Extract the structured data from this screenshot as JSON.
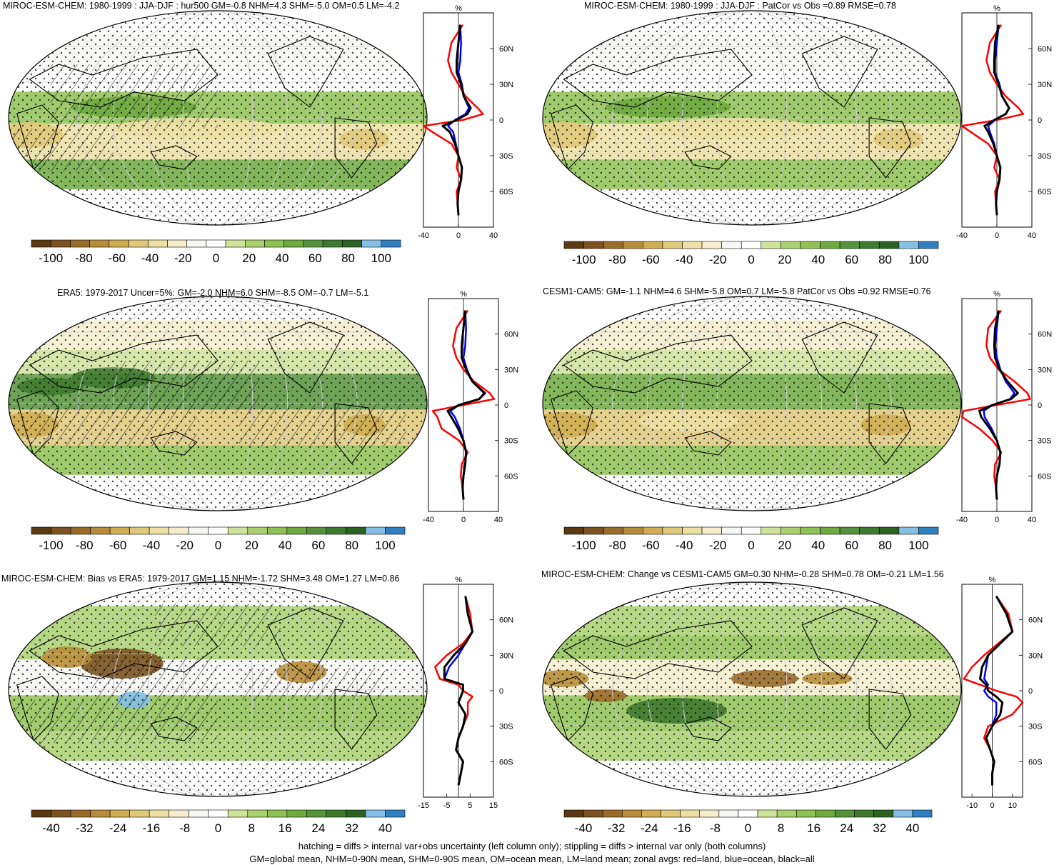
{
  "colors": {
    "scale": [
      "#5a3a12",
      "#7a5321",
      "#9a6c2a",
      "#b88d3a",
      "#cfae52",
      "#e0c97a",
      "#ede0a4",
      "#f5eecc",
      "#f7f7f5",
      "#ffffff",
      "#cfe39a",
      "#a9d170",
      "#8fc254",
      "#6faa3f",
      "#55923a",
      "#3f7a2f",
      "#2c6224",
      "#85bfe6",
      "#2f7fc1"
    ],
    "land": "#ff0000",
    "ocean": "#0000ff",
    "all": "#000000"
  },
  "chart_data": [
    {
      "type": "heatmap",
      "title": "MIROC-ESM-CHEM: 1980-1999 : JJA-DJF : hur500 GM=-0.8 NHM=4.3 SHM=-5.0 OM=0.5 LM=-4.2",
      "colorbar_ticks": [
        "-100",
        "-80",
        "-60",
        "-40",
        "-20",
        "0",
        "20",
        "40",
        "60",
        "80",
        "100"
      ],
      "zonal": {
        "unit": "%",
        "xticks": [
          "-40",
          "0",
          "40"
        ],
        "xlim": [
          -40,
          40
        ],
        "yticks": [
          "60N",
          "30N",
          "0",
          "30S",
          "60S"
        ],
        "lat": [
          80,
          65,
          50,
          40,
          30,
          20,
          10,
          5,
          0,
          -5,
          -10,
          -20,
          -30,
          -40,
          -50,
          -60,
          -70,
          -80
        ],
        "land": [
          5,
          -8,
          -12,
          -8,
          0,
          8,
          22,
          28,
          5,
          -42,
          -30,
          -8,
          0,
          -2,
          3,
          -2,
          -1,
          0
        ],
        "ocean": [
          2,
          3,
          2,
          0,
          4,
          6,
          12,
          8,
          -4,
          -12,
          -6,
          -3,
          0,
          4,
          3,
          0,
          -1,
          0
        ],
        "all": [
          2,
          0,
          -2,
          -2,
          3,
          6,
          14,
          10,
          -2,
          -18,
          -10,
          -4,
          0,
          4,
          3,
          0,
          -1,
          0
        ]
      }
    },
    {
      "type": "heatmap",
      "title": "MIROC-ESM-CHEM: 1980-1999 : JJA-DJF : PatCor vs Obs =0.89 RMSE=0.78",
      "colorbar_ticks": [
        "-100",
        "-80",
        "-60",
        "-40",
        "-20",
        "0",
        "20",
        "40",
        "60",
        "80",
        "100"
      ],
      "zonal": {
        "unit": "%",
        "xticks": [
          "-40",
          "0",
          "40"
        ],
        "xlim": [
          -40,
          40
        ],
        "yticks": [
          "60N",
          "30N",
          "0",
          "30S",
          "60S"
        ],
        "lat": [
          80,
          65,
          50,
          40,
          30,
          20,
          10,
          5,
          0,
          -5,
          -10,
          -20,
          -30,
          -40,
          -50,
          -60,
          -70,
          -80
        ],
        "land": [
          5,
          -8,
          -12,
          -8,
          0,
          10,
          25,
          30,
          0,
          -40,
          -30,
          -10,
          0,
          -3,
          3,
          -2,
          -1,
          0
        ],
        "ocean": [
          2,
          0,
          -2,
          -2,
          3,
          6,
          14,
          10,
          -2,
          -10,
          -8,
          -3,
          0,
          4,
          3,
          0,
          -1,
          0
        ],
        "all": [
          2,
          -2,
          -3,
          -3,
          2,
          6,
          14,
          10,
          -3,
          -14,
          -10,
          -4,
          0,
          4,
          3,
          0,
          -1,
          0
        ]
      }
    },
    {
      "type": "heatmap",
      "title": "ERA5: 1979-2017 Uncer=5%: GM=-2.0 NHM=6.0 SHM=-8.5 OM=-0.7 LM=-5.1",
      "colorbar_ticks": [
        "-100",
        "-80",
        "-60",
        "-40",
        "-20",
        "0",
        "20",
        "40",
        "60",
        "80",
        "100"
      ],
      "zonal": {
        "unit": "%",
        "xticks": [
          "-40",
          "0",
          "40"
        ],
        "xlim": [
          -40,
          40
        ],
        "yticks": [
          "60N",
          "30N",
          "0",
          "30S",
          "60S"
        ],
        "lat": [
          80,
          65,
          50,
          40,
          30,
          20,
          10,
          5,
          0,
          -5,
          -10,
          -20,
          -30,
          -40,
          -50,
          -60,
          -70,
          -80
        ],
        "land": [
          5,
          -8,
          -12,
          -8,
          0,
          12,
          30,
          35,
          0,
          -35,
          -30,
          -25,
          -5,
          5,
          -2,
          -3,
          -1,
          0
        ],
        "ocean": [
          2,
          3,
          2,
          0,
          4,
          10,
          25,
          18,
          -5,
          -15,
          -10,
          -4,
          0,
          3,
          2,
          0,
          -1,
          0
        ],
        "all": [
          2,
          0,
          -2,
          -2,
          3,
          10,
          24,
          18,
          -5,
          -18,
          -14,
          -6,
          0,
          3,
          2,
          0,
          -1,
          0
        ]
      }
    },
    {
      "type": "heatmap",
      "title": "CESM1-CAM5: GM=-1.1 NHM=4.6 SHM=-5.8 OM=0.7 LM=-5.8 PatCor vs Obs =0.92 RMSE=0.76",
      "colorbar_ticks": [
        "-100",
        "-80",
        "-60",
        "-40",
        "-20",
        "0",
        "20",
        "40",
        "60",
        "80",
        "100"
      ],
      "zonal": {
        "unit": "%",
        "xticks": [
          "-40",
          "0",
          "40"
        ],
        "xlim": [
          -40,
          40
        ],
        "yticks": [
          "60N",
          "30N",
          "0",
          "30S",
          "60S"
        ],
        "lat": [
          80,
          65,
          50,
          40,
          30,
          20,
          10,
          5,
          0,
          -5,
          -10,
          -20,
          -30,
          -40,
          -50,
          -60,
          -70,
          -80
        ],
        "land": [
          5,
          -10,
          -12,
          -8,
          2,
          20,
          35,
          38,
          0,
          -38,
          -40,
          -20,
          -5,
          5,
          -2,
          -3,
          -1,
          0
        ],
        "ocean": [
          2,
          0,
          -2,
          0,
          4,
          10,
          20,
          15,
          -5,
          -15,
          -14,
          -6,
          0,
          4,
          3,
          0,
          -1,
          0
        ],
        "all": [
          2,
          -2,
          -3,
          -2,
          3,
          12,
          24,
          16,
          -5,
          -20,
          -18,
          -8,
          0,
          4,
          3,
          0,
          -1,
          0
        ]
      }
    },
    {
      "type": "heatmap",
      "title": "MIROC-ESM-CHEM: Bias vs ERA5: 1979-2017 GM=1.15 NHM=-1.72 SHM=3.48 OM=1.27 LM=0.86",
      "colorbar_ticks": [
        "-40",
        "-32",
        "-24",
        "-16",
        "-8",
        "0",
        "8",
        "16",
        "24",
        "32",
        "40"
      ],
      "zonal": {
        "unit": "%",
        "xticks": [
          "-15",
          "-5",
          "5",
          "15"
        ],
        "xlim": [
          -15,
          15
        ],
        "yticks": [
          "60N",
          "30N",
          "0",
          "30S",
          "60S"
        ],
        "lat": [
          80,
          65,
          50,
          40,
          30,
          20,
          10,
          5,
          0,
          -5,
          -10,
          -20,
          -30,
          -40,
          -50,
          -60,
          -70,
          -80
        ],
        "land": [
          3,
          5,
          6,
          2,
          -5,
          -10,
          -8,
          0,
          2,
          6,
          4,
          4,
          2,
          0,
          -1,
          2,
          1,
          0
        ],
        "ocean": [
          3,
          4,
          6,
          3,
          0,
          -4,
          -6,
          2,
          2,
          1,
          0,
          3,
          2,
          0,
          -1,
          2,
          1,
          0
        ],
        "all": [
          3,
          4,
          6,
          3,
          -2,
          -6,
          -6,
          2,
          2,
          1,
          0,
          3,
          2,
          0,
          -1,
          2,
          1,
          0
        ]
      }
    },
    {
      "type": "heatmap",
      "title": "MIROC-ESM-CHEM: Change vs CESM1-CAM5 GM=0.30 NHM=-0.28 SHM=0.78 OM=-0.21 LM=1.56",
      "colorbar_ticks": [
        "-40",
        "-32",
        "-24",
        "-16",
        "-8",
        "0",
        "8",
        "16",
        "24",
        "32",
        "40"
      ],
      "zonal": {
        "unit": "%",
        "xticks": [
          "-10",
          "0",
          "10"
        ],
        "xlim": [
          -15,
          15
        ],
        "yticks": [
          "60N",
          "30N",
          "0",
          "30S",
          "60S"
        ],
        "lat": [
          80,
          65,
          50,
          40,
          30,
          20,
          10,
          5,
          0,
          -5,
          -10,
          -20,
          -30,
          -40,
          -50,
          -60,
          -70,
          -80
        ],
        "land": [
          2,
          8,
          10,
          3,
          -4,
          -10,
          -14,
          -6,
          2,
          12,
          15,
          10,
          -2,
          -4,
          -1,
          1,
          0,
          0
        ],
        "ocean": [
          2,
          7,
          10,
          4,
          -2,
          -3,
          -4,
          -2,
          -4,
          -2,
          2,
          2,
          0,
          -3,
          -1,
          1,
          0,
          0
        ],
        "all": [
          2,
          7,
          10,
          4,
          -2,
          -5,
          -6,
          -3,
          -2,
          2,
          5,
          4,
          0,
          -3,
          -1,
          1,
          0,
          0
        ]
      }
    }
  ],
  "footer": {
    "line1": "hatching = diffs > internal var+obs uncertainty (left column only); stippling = diffs > internal var only (both columns)",
    "line2": "GM=global mean, NHM=0-90N mean, SHM=0-90S mean, OM=ocean mean, LM=land mean; zonal avgs: red=land, blue=ocean, black=all"
  }
}
